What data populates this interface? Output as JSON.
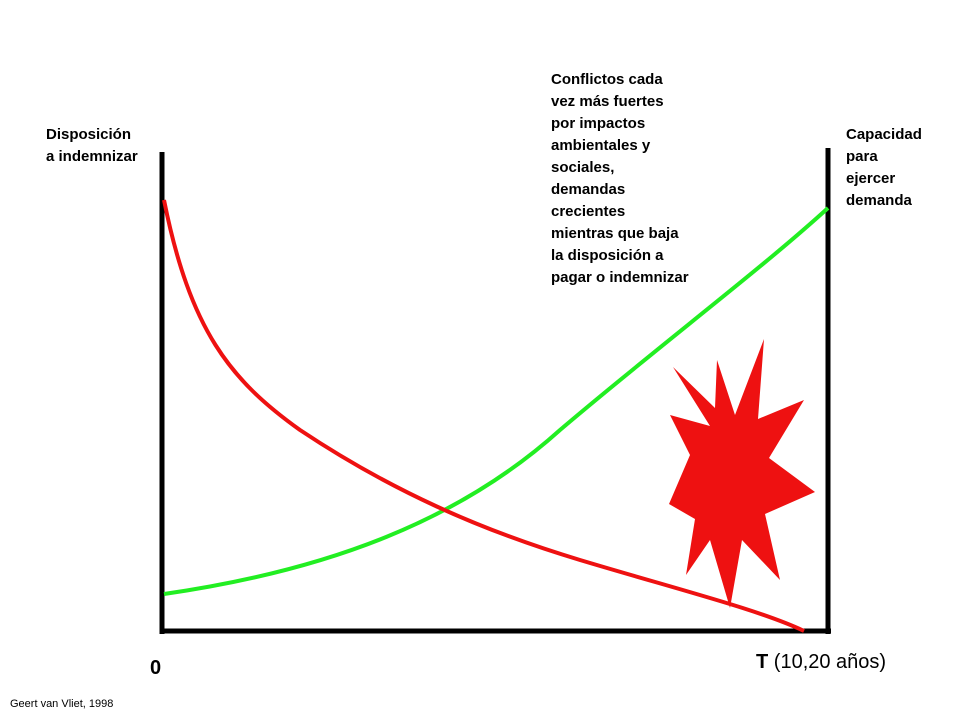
{
  "diagram": {
    "left_axis_label": [
      "Disposición",
      "a indemnizar"
    ],
    "right_axis_label": [
      "Capacidad",
      "para",
      "ejercer",
      "demanda"
    ],
    "annotation": [
      "Conflictos cada",
      "vez más fuertes",
      "por impactos",
      "ambientales y",
      "sociales,",
      "demandas",
      "crecientes",
      "mientras que baja",
      "la disposición a",
      "pagar o indemnizar"
    ],
    "origin_label": "0",
    "time_axis": {
      "symbol": "T",
      "range": "(10,20 años)"
    },
    "credit": "Geert van Vliet, 1998",
    "colors": {
      "axes": "#000000",
      "disposition_curve": "#ee1111",
      "capacity_curve": "#22ee22",
      "conflict_burst": "#ee1111"
    },
    "curves": [
      {
        "name": "disposition-curve",
        "trend": "decreasing"
      },
      {
        "name": "capacity-curve",
        "trend": "increasing"
      }
    ],
    "burst_icon": "explosion-burst-icon"
  }
}
